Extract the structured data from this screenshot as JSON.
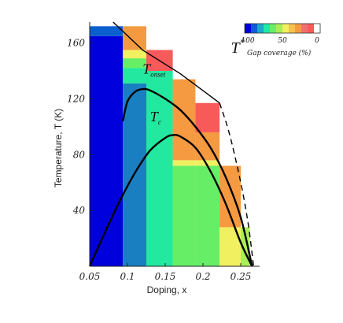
{
  "chart_data": {
    "type": "heatmap",
    "xlabel": "Doping, x",
    "ylabel": "Temperature, T (K)",
    "xlim": [
      0.05,
      0.275
    ],
    "ylim": [
      0,
      175
    ],
    "xticks": [
      "0.05",
      "0.1",
      "0.15",
      "0.2",
      "0.25"
    ],
    "yticks": [
      "40",
      "80",
      "120",
      "160"
    ],
    "xtick_values": [
      0.05,
      0.1,
      0.15,
      0.2,
      0.25
    ],
    "ytick_values": [
      40,
      80,
      120,
      160
    ],
    "legend": {
      "title": "Gap coverage (%)",
      "tick_labels": [
        "100",
        "50",
        "0"
      ],
      "colors": [
        "#0000dd",
        "#0a5fd0",
        "#1aa8c8",
        "#22e8a0",
        "#66ee66",
        "#aaee55",
        "#f0f060",
        "#f8c050",
        "#f59a40",
        "#f07070",
        "#f85a5a",
        "#ffffff"
      ],
      "placement": "top-right"
    },
    "coverage_columns": [
      {
        "x0": 0.05,
        "x1": 0.094,
        "cells": [
          [
            0,
            165,
            "#0000dd"
          ],
          [
            165,
            172,
            "#0a5fd0"
          ]
        ]
      },
      {
        "x0": 0.094,
        "x1": 0.125,
        "cells": [
          [
            0,
            131,
            "#1a7fc0"
          ],
          [
            131,
            142,
            "#22e8a0"
          ],
          [
            142,
            149,
            "#66ee66"
          ],
          [
            149,
            155,
            "#f0f060"
          ],
          [
            155,
            172,
            "#f59a40"
          ]
        ]
      },
      {
        "x0": 0.125,
        "x1": 0.16,
        "cells": [
          [
            0,
            116,
            "#22e8a0"
          ],
          [
            116,
            140,
            "#22e8a0"
          ],
          [
            140,
            155,
            "#f85a5a"
          ]
        ]
      },
      {
        "x0": 0.16,
        "x1": 0.19,
        "cells": [
          [
            0,
            72,
            "#66ee66"
          ],
          [
            72,
            76,
            "#f0f060"
          ],
          [
            76,
            96,
            "#f59a40"
          ],
          [
            96,
            134,
            "#f59a40"
          ]
        ]
      },
      {
        "x0": 0.19,
        "x1": 0.222,
        "cells": [
          [
            0,
            72,
            "#66ee66"
          ],
          [
            72,
            76,
            "#f0f060"
          ],
          [
            76,
            96,
            "#f59a40"
          ],
          [
            96,
            117,
            "#f85a5a"
          ]
        ]
      },
      {
        "x0": 0.222,
        "x1": 0.25,
        "cells": [
          [
            0,
            28,
            "#f0f060"
          ],
          [
            28,
            72,
            "#f59a40"
          ]
        ]
      },
      {
        "x0": 0.25,
        "x1": 0.262,
        "cells": [
          [
            0,
            28,
            "#aaee55"
          ]
        ]
      }
    ],
    "tri_corner": {
      "color": "#f59a40",
      "x": [
        0.125,
        0.222,
        0.25
      ],
      "y": [
        172,
        110,
        0
      ]
    },
    "series": [
      {
        "name": "T*",
        "style": "solid",
        "x": [
          0.081,
          0.12,
          0.17,
          0.222
        ],
        "y": [
          175,
          155,
          138,
          117
        ]
      },
      {
        "name": "T* dashed extension",
        "style": "dashed",
        "x": [
          0.222,
          0.235,
          0.25,
          0.26,
          0.267
        ],
        "y": [
          117,
          95,
          60,
          30,
          0
        ]
      },
      {
        "name": "T_onset",
        "style": "solid",
        "x": [
          0.094,
          0.1,
          0.11,
          0.12,
          0.13,
          0.15,
          0.17,
          0.19,
          0.21,
          0.23,
          0.25,
          0.265
        ],
        "y": [
          104,
          118,
          125,
          127,
          126,
          120,
          112,
          100,
          85,
          64,
          35,
          0
        ]
      },
      {
        "name": "T_c",
        "style": "solid",
        "x": [
          0.05,
          0.07,
          0.09,
          0.11,
          0.13,
          0.15,
          0.16,
          0.17,
          0.19,
          0.21,
          0.23,
          0.25,
          0.265
        ],
        "y": [
          0,
          24,
          47,
          67,
          83,
          92,
          94,
          93,
          85,
          68,
          45,
          17,
          0
        ]
      }
    ],
    "annotations": [
      {
        "text": "T",
        "sup": "*",
        "x": 0.237,
        "y": 153
      },
      {
        "text": "T",
        "sub": "onset",
        "x": 0.12,
        "y": 138
      },
      {
        "text": "T",
        "sub": "c",
        "x": 0.13,
        "y": 104
      }
    ],
    "grid": false
  }
}
